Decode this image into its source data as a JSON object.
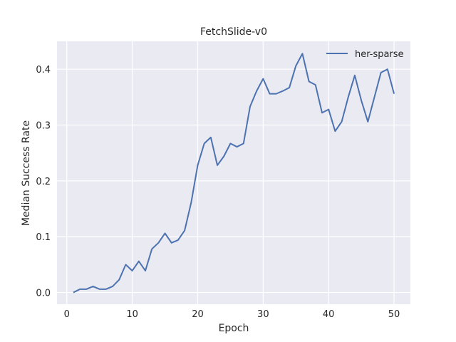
{
  "chart_data": {
    "type": "line",
    "title": "FetchSlide-v0",
    "xlabel": "Epoch",
    "ylabel": "Median Success Rate",
    "xlim": [
      -1.5,
      52.5
    ],
    "ylim": [
      -0.021,
      0.45
    ],
    "xticks": [
      0,
      10,
      20,
      30,
      40,
      50
    ],
    "yticks": [
      0.0,
      0.1,
      0.2,
      0.3,
      0.4
    ],
    "xtick_labels": [
      "0",
      "10",
      "20",
      "30",
      "40",
      "50"
    ],
    "ytick_labels": [
      "0.0",
      "0.1",
      "0.2",
      "0.3",
      "0.4"
    ],
    "grid": true,
    "legend_position": "top-right",
    "series": [
      {
        "name": "her-sparse",
        "color": "#4c72b0",
        "x": [
          1,
          2,
          3,
          4,
          5,
          6,
          7,
          8,
          9,
          10,
          11,
          12,
          13,
          14,
          15,
          16,
          17,
          18,
          19,
          20,
          21,
          22,
          23,
          24,
          25,
          26,
          27,
          28,
          29,
          30,
          31,
          32,
          33,
          34,
          35,
          36,
          37,
          38,
          39,
          40,
          41,
          42,
          43,
          44,
          45,
          46,
          47,
          48,
          49,
          50
        ],
        "y": [
          0.0,
          0.006,
          0.006,
          0.011,
          0.006,
          0.006,
          0.011,
          0.023,
          0.05,
          0.039,
          0.056,
          0.039,
          0.078,
          0.089,
          0.106,
          0.089,
          0.094,
          0.111,
          0.161,
          0.228,
          0.267,
          0.278,
          0.228,
          0.244,
          0.267,
          0.261,
          0.267,
          0.333,
          0.361,
          0.383,
          0.356,
          0.356,
          0.361,
          0.367,
          0.406,
          0.428,
          0.378,
          0.372,
          0.322,
          0.328,
          0.289,
          0.306,
          0.35,
          0.389,
          0.344,
          0.306,
          0.35,
          0.394,
          0.4,
          0.356
        ]
      }
    ]
  }
}
